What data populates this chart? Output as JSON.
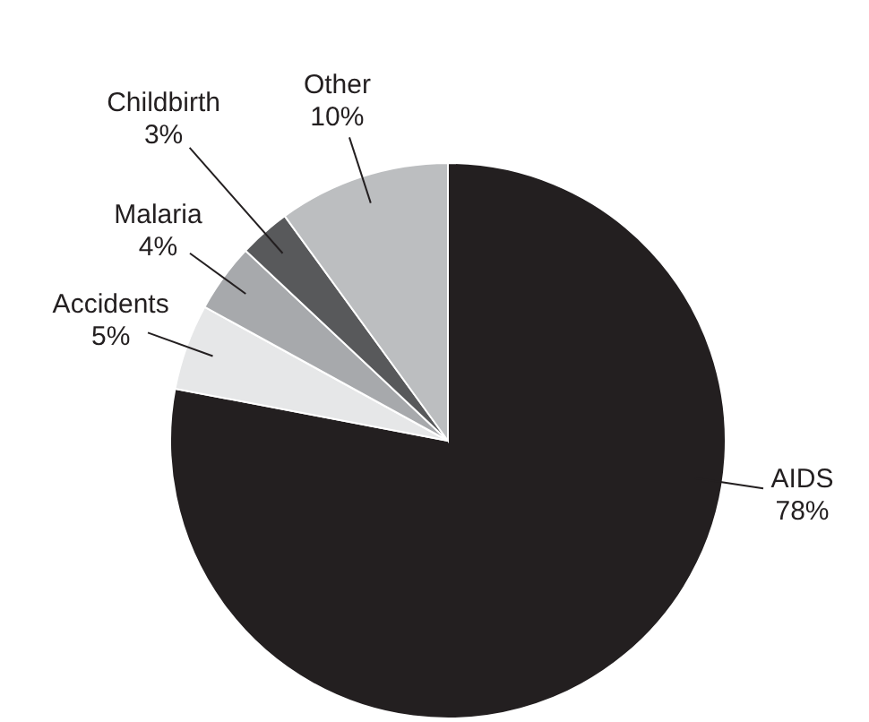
{
  "chart_data": {
    "type": "pie",
    "categories": [
      "AIDS",
      "Accidents",
      "Malaria",
      "Childbirth",
      "Other"
    ],
    "values": [
      78,
      5,
      4,
      3,
      10
    ],
    "value_labels": [
      "78%",
      "5%",
      "4%",
      "3%",
      "10%"
    ],
    "colors": [
      "#231f20",
      "#e6e7e8",
      "#a7a9ac",
      "#58595b",
      "#bcbec0"
    ]
  }
}
